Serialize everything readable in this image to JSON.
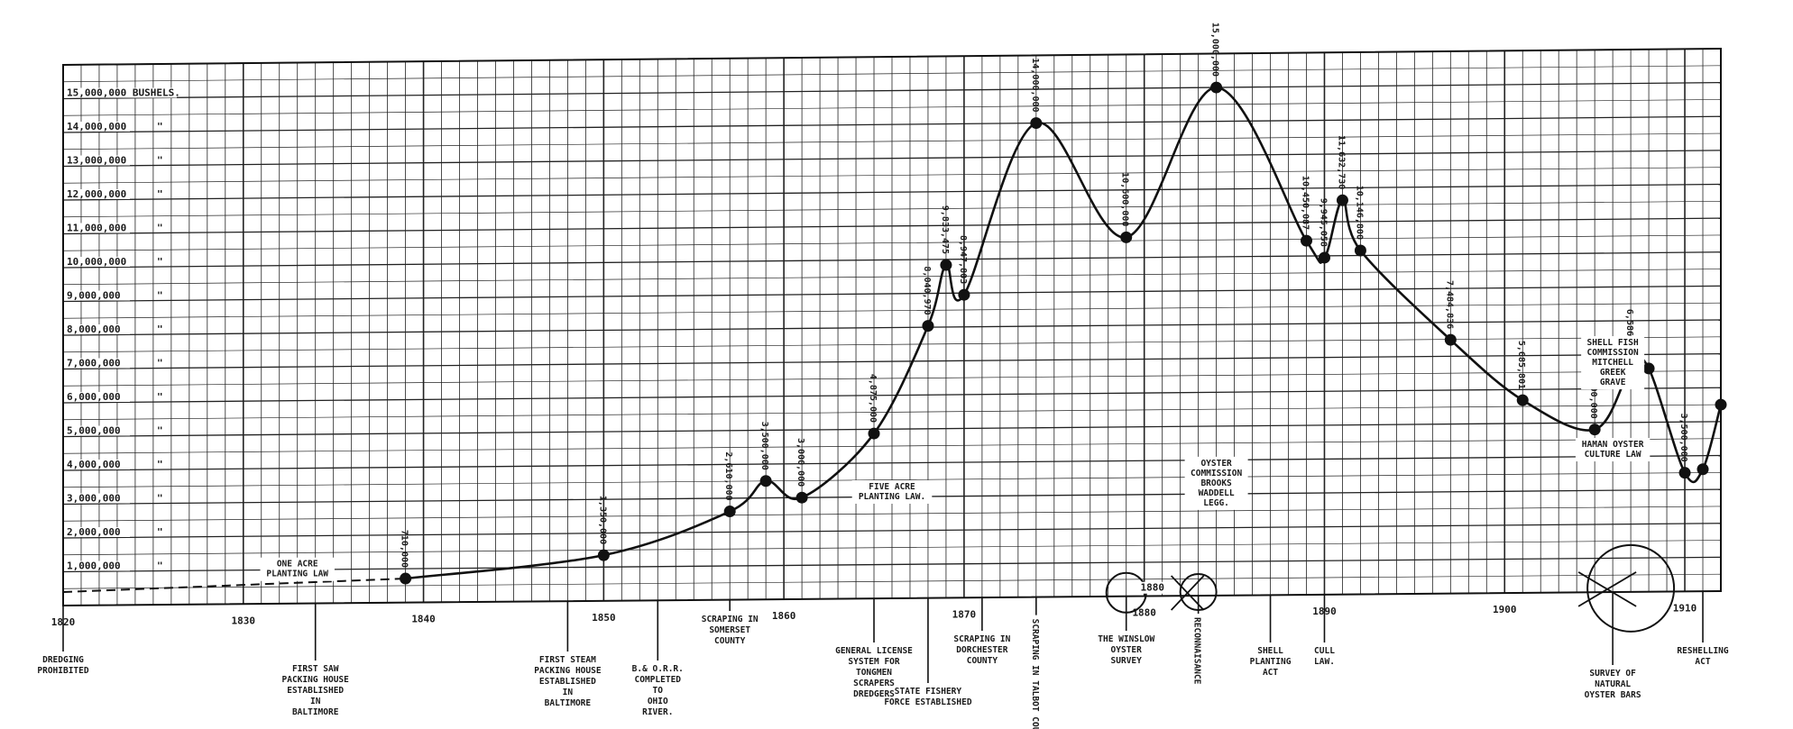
{
  "chart_data": {
    "type": "line",
    "title": "",
    "xlabel": "",
    "ylabel": "",
    "xlim": [
      1820,
      1912
    ],
    "ylim": [
      0,
      16000000
    ],
    "grid": true,
    "x_ticks": [
      "1820",
      "1830",
      "1840",
      "1850",
      "1860",
      "1870",
      "1880",
      "1890",
      "1900",
      "1910"
    ],
    "y_ticks": [
      {
        "value": 1000000,
        "label": "1,000,000"
      },
      {
        "value": 2000000,
        "label": "2,000,000"
      },
      {
        "value": 3000000,
        "label": "3,000,000"
      },
      {
        "value": 4000000,
        "label": "4,000,000"
      },
      {
        "value": 5000000,
        "label": "5,000,000"
      },
      {
        "value": 6000000,
        "label": "6,000,000"
      },
      {
        "value": 7000000,
        "label": "7,000,000"
      },
      {
        "value": 8000000,
        "label": "8,000,000"
      },
      {
        "value": 9000000,
        "label": "9,000,000"
      },
      {
        "value": 10000000,
        "label": "10,000,000"
      },
      {
        "value": 11000000,
        "label": "11,000,000"
      },
      {
        "value": 12000000,
        "label": "12,000,000"
      },
      {
        "value": 13000000,
        "label": "13,000,000"
      },
      {
        "value": 14000000,
        "label": "14,000,000"
      },
      {
        "value": 15000000,
        "label": "15,000,000 BUSHELS."
      }
    ],
    "ditto_mark": "\"",
    "dashed_segment": [
      {
        "x": 1820,
        "y": 400000
      },
      {
        "x": 1839,
        "y": 710000
      }
    ],
    "series": [
      {
        "values": [
          {
            "x": 1839,
            "y": 710000,
            "label": "710,000"
          },
          {
            "x": 1850,
            "y": 1350000,
            "label": "1,350,000"
          },
          {
            "x": 1857,
            "y": 2610000,
            "label": "2,610,000"
          },
          {
            "x": 1859,
            "y": 3500000,
            "label": "3,500,000"
          },
          {
            "x": 1861,
            "y": 3000000,
            "label": "3,000,000"
          },
          {
            "x": 1865,
            "y": 4875000,
            "label": "4,875,000"
          },
          {
            "x": 1868,
            "y": 8040970,
            "label": "8,040,970"
          },
          {
            "x": 1869,
            "y": 9833475,
            "label": "9,833,475"
          },
          {
            "x": 1870,
            "y": 8947803,
            "label": "8,947,803"
          },
          {
            "x": 1874,
            "y": 14000000,
            "label": "14,000,000"
          },
          {
            "x": 1879,
            "y": 10600000,
            "label": "10,600,000"
          },
          {
            "x": 1884,
            "y": 15000000,
            "label": "15,000,000"
          },
          {
            "x": 1889,
            "y": 10450087,
            "label": "10,450,087"
          },
          {
            "x": 1890,
            "y": 9945058,
            "label": "9,945,058"
          },
          {
            "x": 1891,
            "y": 11632730,
            "label": "11,632,730"
          },
          {
            "x": 1892,
            "y": 10146800,
            "label": "10,146,800"
          },
          {
            "x": 1897,
            "y": 7484836,
            "label": "7,484,836"
          },
          {
            "x": 1901,
            "y": 5685801,
            "label": "5,685,801"
          },
          {
            "x": 1905,
            "y": 4800000,
            "label": "4,800,000"
          },
          {
            "x": 1907,
            "y": 6586000,
            "label": "6,586,000"
          },
          {
            "x": 1908,
            "y": 6586000
          },
          {
            "x": 1910,
            "y": 3500000,
            "label": "3,500,000"
          },
          {
            "x": 1911,
            "y": 3600000
          },
          {
            "x": 1912,
            "y": 5500000
          }
        ]
      }
    ],
    "events_above": [
      {
        "x": 1833,
        "lines": [
          "ONE ACRE",
          "PLANTING LAW"
        ]
      },
      {
        "x": 1866,
        "lines": [
          "FIVE ACRE",
          "PLANTING LAW."
        ]
      },
      {
        "x": 1884,
        "lines": [
          "OYSTER",
          "COMMISSION",
          "BROOKS",
          "WADDELL",
          "LEGG."
        ]
      },
      {
        "x": 1906,
        "lines": [
          "HAMAN OYSTER",
          "CULTURE LAW"
        ]
      },
      {
        "x": 1906,
        "lines": [
          "SHELL FISH",
          "COMMISSION",
          "MITCHELL",
          "GREEK",
          "GRAVE"
        ]
      }
    ],
    "events_below": [
      {
        "x": 1820,
        "lines": [
          "DREDGING",
          "PROHIBITED"
        ]
      },
      {
        "x": 1834,
        "lines": [
          "FIRST SAW",
          "PACKING HOUSE",
          "ESTABLISHED",
          "IN",
          "BALTIMORE"
        ]
      },
      {
        "x": 1848,
        "lines": [
          "FIRST STEAM",
          "PACKING HOUSE",
          "ESTABLISHED",
          "IN",
          "BALTIMORE"
        ]
      },
      {
        "x": 1853,
        "lines": [
          "B.& O.R.R.",
          "COMPLETED",
          "TO",
          "OHIO",
          "RIVER."
        ]
      },
      {
        "x": 1857,
        "lines": [
          "SCRAPING IN",
          "SOMERSET",
          "COUNTY"
        ]
      },
      {
        "x": 1865,
        "lines": [
          "GENERAL LICENSE",
          "SYSTEM FOR",
          "TONGMEN",
          "SCRAPERS",
          "DREDGERS"
        ]
      },
      {
        "x": 1868,
        "lines": [
          "STATE FISHERY",
          "FORCE ESTABLISHED"
        ]
      },
      {
        "x": 1871,
        "lines": [
          "SCRAPING IN",
          "DORCHESTER",
          "COUNTY"
        ]
      },
      {
        "x": 1879,
        "lines": [
          "THE WINSLOW",
          "OYSTER",
          "SURVEY"
        ]
      },
      {
        "x": 1887,
        "lines": [
          "SHELL",
          "PLANTING",
          "ACT"
        ]
      },
      {
        "x": 1890,
        "lines": [
          "CULL",
          "LAW."
        ]
      },
      {
        "x": 1906,
        "lines": [
          "SURVEY OF",
          "NATURAL",
          "OYSTER BARS"
        ]
      },
      {
        "x": 1911,
        "lines": [
          "RESHELLING",
          "ACT"
        ]
      }
    ],
    "events_vertical": [
      {
        "x": 1874,
        "text": "SCRAPING IN TALBOT COUNTY"
      },
      {
        "x": 1883,
        "text": "RECONNAISANCE"
      }
    ],
    "circle_markers": [
      {
        "x": 1879,
        "text": "1880"
      },
      {
        "x": 1883
      },
      {
        "x": 1907
      }
    ]
  }
}
